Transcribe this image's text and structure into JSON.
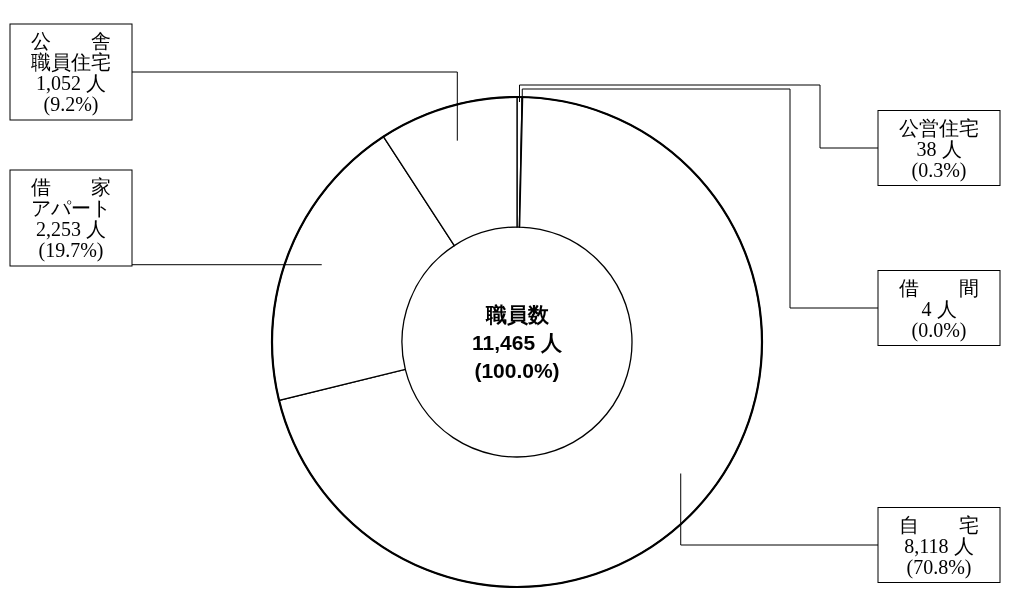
{
  "chart_data": {
    "type": "donut",
    "categories": [
      "公営住宅",
      "借　　間",
      "自　　宅",
      "借　　家アパート",
      "公　　舎職員住宅"
    ],
    "values": [
      38,
      4,
      8118,
      2253,
      1052
    ],
    "value_labels": [
      "38 人\n(0.3%)",
      "4 人\n(0.0%)",
      "8,118 人\n(70.8%)",
      "2,253 人\n(19.7%)",
      "1,052 人\n(9.2%)"
    ],
    "colors": [
      "#ffffff",
      "#ffffff",
      "#ffffff",
      "#ffffff",
      "#ffffff"
    ],
    "annotations": [
      "職員数\n11,465 人\n(100.0%)"
    ]
  }
}
